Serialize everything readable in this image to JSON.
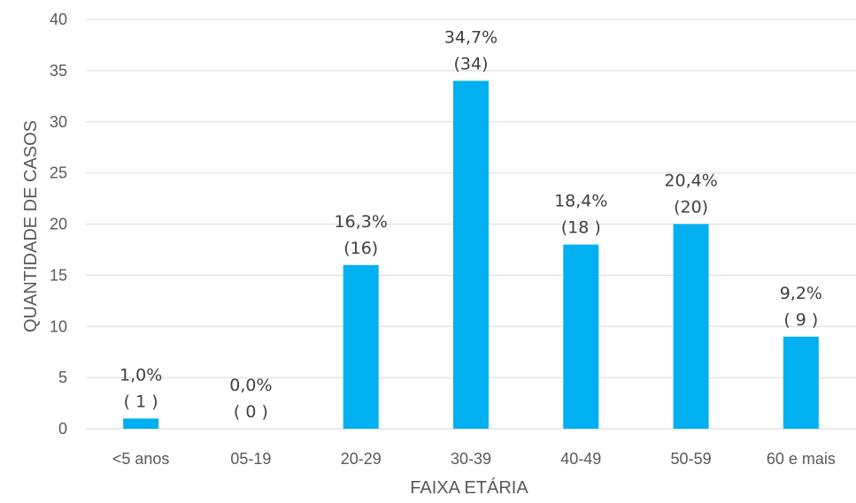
{
  "chart_data": {
    "type": "bar",
    "title": "",
    "xlabel": "FAIXA ETÁRIA",
    "ylabel": "QUANTIDADE DE CASOS",
    "ylim": [
      0,
      40
    ],
    "yticks": [
      "0",
      "5",
      "10",
      "15",
      "20",
      "25",
      "30",
      "35",
      "40"
    ],
    "grid": true,
    "legend": "none",
    "bar_color": "#00b0f0",
    "categories": [
      "<5 anos",
      "05-19",
      "20-29",
      "30-39",
      "40-49",
      "50-59",
      "60 e mais"
    ],
    "values": [
      1,
      0,
      16,
      34,
      18,
      20,
      9
    ],
    "data_labels": [
      {
        "percent": "1,0%",
        "count": "( 1 )"
      },
      {
        "percent": "0,0%",
        "count": "( 0 )"
      },
      {
        "percent": "16,3%",
        "count": "(16)"
      },
      {
        "percent": "34,7%",
        "count": "(34)"
      },
      {
        "percent": "18,4%",
        "count": "(18 )"
      },
      {
        "percent": "20,4%",
        "count": "(20)"
      },
      {
        "percent": "9,2%",
        "count": "( 9  )"
      }
    ]
  }
}
